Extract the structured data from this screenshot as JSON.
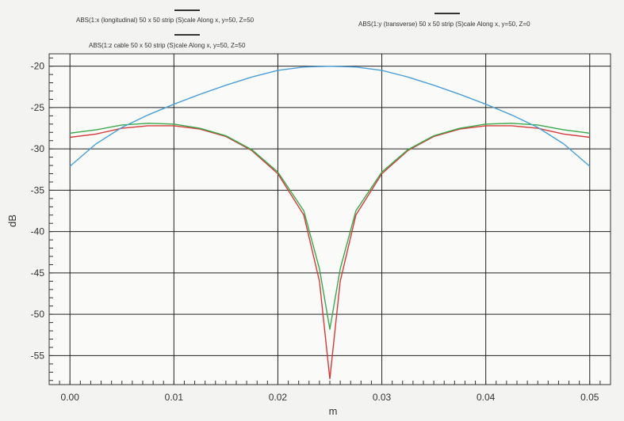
{
  "colors": {
    "page_bg": "#f3f3f1",
    "plot_bg": "#fafaf8",
    "grid": "#222222",
    "axis": "#333333"
  },
  "chart_data": {
    "type": "line",
    "title": "",
    "xlabel": "m",
    "ylabel": "dB",
    "xlim": [
      -0.002,
      0.052
    ],
    "ylim": [
      -58.5,
      -18.5
    ],
    "x_ticks": [
      0.0,
      0.01,
      0.02,
      0.03,
      0.04,
      0.05
    ],
    "x_tick_labels": [
      "0.00",
      "0.01",
      "0.02",
      "0.03",
      "0.04",
      "0.05"
    ],
    "y_ticks": [
      -20,
      -25,
      -30,
      -35,
      -40,
      -45,
      -50,
      -55
    ],
    "y_tick_labels": [
      "-20",
      "-25",
      "-30",
      "-35",
      "-40",
      "-45",
      "-50",
      "-55"
    ],
    "grid": true,
    "legend_placement": "top",
    "series": [
      {
        "name": "ABS(1:x (longitudinal) 50 x 50 strip (S)cale Along x, y=50, Z=50",
        "color": "#d43a3a",
        "x": [
          0.0,
          0.0025,
          0.005,
          0.0075,
          0.01,
          0.0125,
          0.015,
          0.0175,
          0.02,
          0.0225,
          0.024,
          0.025,
          0.026,
          0.0275,
          0.03,
          0.0325,
          0.035,
          0.0375,
          0.04,
          0.0425,
          0.045,
          0.0475,
          0.05
        ],
        "y": [
          -28.6,
          -28.2,
          -27.5,
          -27.2,
          -27.2,
          -27.6,
          -28.5,
          -30.2,
          -33.0,
          -38.0,
          -46.0,
          -57.8,
          -46.0,
          -38.0,
          -33.0,
          -30.2,
          -28.5,
          -27.6,
          -27.2,
          -27.2,
          -27.5,
          -28.2,
          -28.6
        ]
      },
      {
        "name": "ABS(1:z cable 50 x 50 strip (S)cale Along x, y=50, Z=50",
        "color": "#3aa84a",
        "x": [
          0.0,
          0.0025,
          0.005,
          0.0075,
          0.01,
          0.0125,
          0.015,
          0.0175,
          0.02,
          0.0225,
          0.024,
          0.025,
          0.026,
          0.0275,
          0.03,
          0.0325,
          0.035,
          0.0375,
          0.04,
          0.0425,
          0.045,
          0.0475,
          0.05
        ],
        "y": [
          -28.1,
          -27.7,
          -27.1,
          -26.9,
          -27.0,
          -27.5,
          -28.4,
          -30.1,
          -32.8,
          -37.5,
          -44.5,
          -51.8,
          -44.5,
          -37.5,
          -32.8,
          -30.1,
          -28.4,
          -27.5,
          -27.0,
          -26.9,
          -27.1,
          -27.7,
          -28.1
        ]
      },
      {
        "name": "ABS(1:y (transverse) 50 x 50 strip (S)cale Along x, y=50, Z=0",
        "color": "#4a9fd8",
        "x": [
          0.0,
          0.0025,
          0.005,
          0.0075,
          0.01,
          0.0125,
          0.015,
          0.0175,
          0.02,
          0.0225,
          0.025,
          0.0275,
          0.03,
          0.0325,
          0.035,
          0.0375,
          0.04,
          0.0425,
          0.045,
          0.0475,
          0.05
        ],
        "y": [
          -32.1,
          -29.4,
          -27.4,
          -25.9,
          -24.6,
          -23.4,
          -22.3,
          -21.3,
          -20.5,
          -20.1,
          -20.0,
          -20.1,
          -20.5,
          -21.3,
          -22.3,
          -23.4,
          -24.6,
          -25.9,
          -27.4,
          -29.4,
          -32.1
        ]
      }
    ]
  }
}
